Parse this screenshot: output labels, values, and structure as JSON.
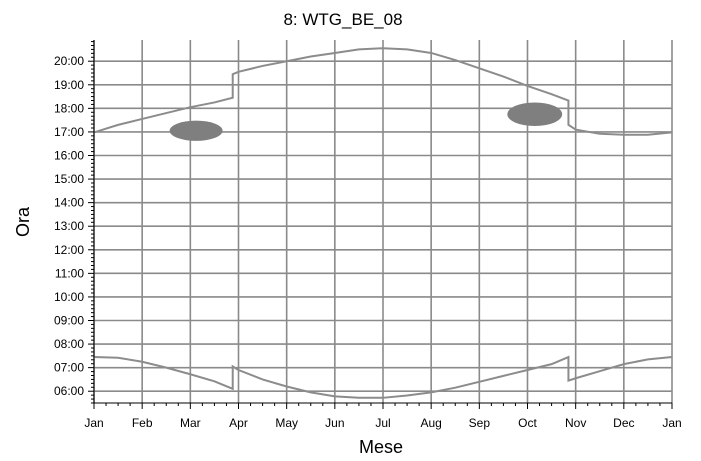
{
  "chart_data": {
    "type": "line",
    "title": "8: WTG_BE_08",
    "xlabel": "Mese",
    "ylabel": "Ora",
    "x_tick_labels": [
      "Jan",
      "Feb",
      "Mar",
      "Apr",
      "May",
      "Jun",
      "Jul",
      "Aug",
      "Sep",
      "Oct",
      "Nov",
      "Dec",
      "Jan"
    ],
    "y_tick_labels": [
      "06:00",
      "07:00",
      "08:00",
      "09:00",
      "10:00",
      "11:00",
      "12:00",
      "13:00",
      "14:00",
      "15:00",
      "16:00",
      "17:00",
      "18:00",
      "19:00",
      "20:00"
    ],
    "xlim_months": [
      0,
      12
    ],
    "ylim_hours": [
      5.5,
      20.9
    ],
    "grid": true,
    "colors": {
      "series": "#8c8c8c",
      "grid": "#8a8a8a",
      "shadow": "#7f7f7f"
    },
    "series": [
      {
        "x": [
          0,
          0.5,
          1,
          1.5,
          2,
          2.5,
          2.88,
          2.88,
          3,
          3.5,
          4,
          4.5,
          5,
          5.5,
          6,
          6.5,
          7,
          7.5,
          8,
          8.5,
          9,
          9.5,
          9.85,
          9.85,
          10,
          10.5,
          11,
          11.5,
          12
        ],
        "y": [
          16.98,
          17.3,
          17.55,
          17.8,
          18.05,
          18.25,
          18.45,
          19.45,
          19.55,
          19.8,
          20.0,
          20.2,
          20.35,
          20.5,
          20.55,
          20.5,
          20.35,
          20.05,
          19.7,
          19.35,
          18.95,
          18.6,
          18.33,
          17.3,
          17.1,
          16.92,
          16.88,
          16.88,
          16.98
        ]
      },
      {
        "x": [
          0,
          0.5,
          1,
          1.5,
          2,
          2.5,
          2.88,
          2.88,
          3,
          3.5,
          4,
          4.5,
          5,
          5.5,
          6,
          6.5,
          7,
          7.5,
          8,
          8.5,
          9,
          9.5,
          9.85,
          9.85,
          10,
          10.5,
          11,
          11.5,
          12
        ],
        "y": [
          7.45,
          7.42,
          7.25,
          7.0,
          6.72,
          6.42,
          6.1,
          7.05,
          6.9,
          6.5,
          6.2,
          5.95,
          5.78,
          5.72,
          5.72,
          5.82,
          5.95,
          6.15,
          6.4,
          6.65,
          6.9,
          7.15,
          7.45,
          6.45,
          6.55,
          6.85,
          7.15,
          7.35,
          7.45
        ]
      }
    ],
    "shadow_areas": [
      {
        "x_center": 2.12,
        "y_center": 17.05,
        "x_radius": 0.55,
        "y_radius": 0.43
      },
      {
        "x_center": 9.15,
        "y_center": 17.75,
        "x_radius": 0.57,
        "y_radius": 0.5
      }
    ]
  }
}
